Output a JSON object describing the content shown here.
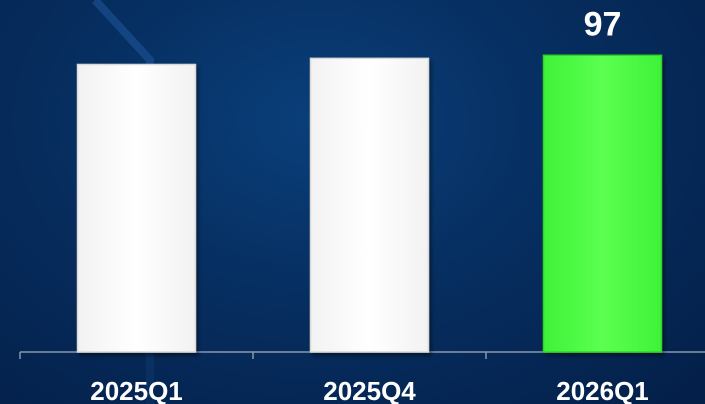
{
  "chart_data": {
    "type": "bar",
    "categories": [
      "2025Q1",
      "2025Q4",
      "2026Q1"
    ],
    "values": [
      94,
      96,
      97
    ],
    "data_labels": [
      "",
      "",
      "97"
    ],
    "highlight_index": 2,
    "bar_colors": [
      "#ffffff",
      "#ffffff",
      "#4dff40"
    ],
    "title": "",
    "xlabel": "",
    "ylabel": "",
    "ylim": [
      0,
      102
    ],
    "grid": false,
    "legend": "none"
  },
  "colors": {
    "background": "#062e60",
    "axis": "#8a98ad",
    "bar_default": "#ffffff",
    "bar_highlight": "#4dff40",
    "text": "#ffffff"
  }
}
